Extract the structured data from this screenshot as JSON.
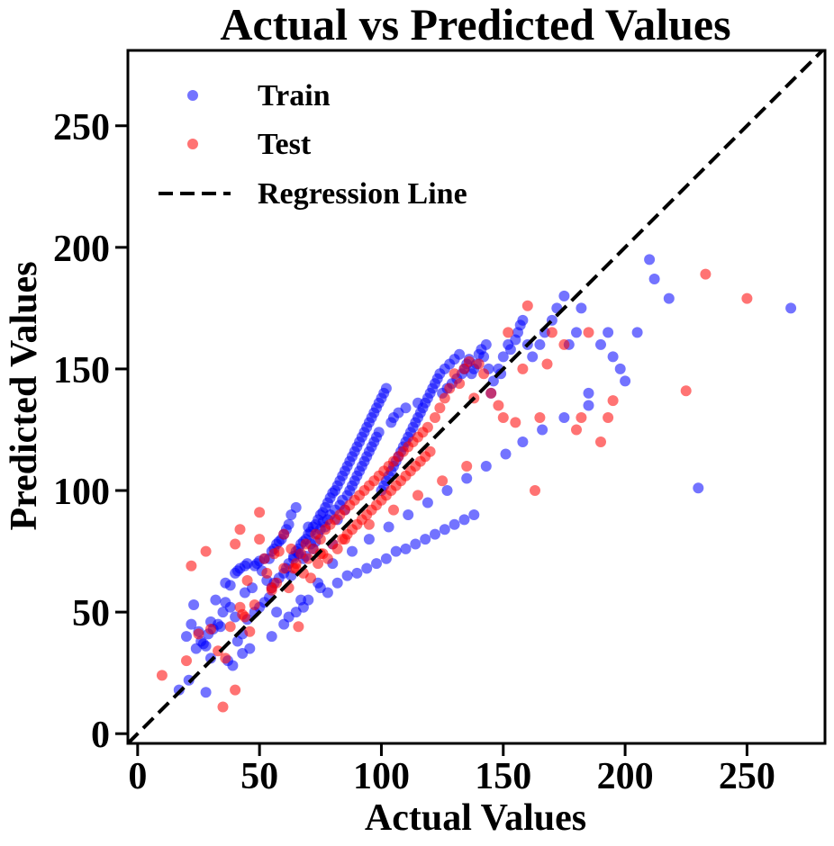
{
  "chart_data": {
    "type": "scatter",
    "title": "Actual vs Predicted Values",
    "xlabel": "Actual Values",
    "ylabel": "Predicted Values",
    "xlim": [
      -4,
      282
    ],
    "ylim": [
      -4,
      281
    ],
    "xticks": [
      0,
      50,
      100,
      150,
      200,
      250
    ],
    "yticks": [
      0,
      50,
      100,
      150,
      200,
      250
    ],
    "grid": false,
    "legend_position": "top-left",
    "regression_line": {
      "label": "Regression Line",
      "x": [
        -4,
        282
      ],
      "y": [
        -4,
        282
      ],
      "color": "#000000",
      "style": "dashed"
    },
    "series": [
      {
        "name": "Train",
        "color": "#0000ff",
        "opacity": 0.55,
        "x": [
          17,
          20,
          21,
          22,
          23,
          24,
          25,
          26,
          27,
          28,
          28,
          29,
          30,
          30,
          31,
          32,
          33,
          34,
          35,
          36,
          36,
          37,
          38,
          38,
          39,
          40,
          40,
          41,
          41,
          42,
          43,
          43,
          44,
          44,
          45,
          45,
          46,
          47,
          48,
          48,
          49,
          50,
          50,
          51,
          52,
          52,
          53,
          54,
          54,
          55,
          55,
          56,
          56,
          57,
          57,
          58,
          58,
          59,
          60,
          60,
          61,
          61,
          62,
          62,
          63,
          63,
          64,
          64,
          65,
          65,
          66,
          66,
          67,
          67,
          68,
          68,
          69,
          69,
          70,
          70,
          71,
          71,
          72,
          72,
          73,
          73,
          74,
          74,
          75,
          75,
          76,
          76,
          77,
          77,
          78,
          78,
          79,
          79,
          80,
          80,
          81,
          81,
          82,
          82,
          83,
          83,
          84,
          84,
          85,
          85,
          86,
          86,
          87,
          87,
          88,
          88,
          89,
          89,
          90,
          90,
          91,
          91,
          92,
          92,
          93,
          93,
          94,
          94,
          95,
          95,
          96,
          96,
          97,
          97,
          98,
          98,
          99,
          99,
          100,
          100,
          101,
          101,
          102,
          102,
          103,
          104,
          104,
          105,
          105,
          106,
          107,
          107,
          108,
          109,
          110,
          110,
          111,
          112,
          113,
          114,
          115,
          115,
          116,
          117,
          118,
          119,
          120,
          121,
          122,
          123,
          124,
          125,
          126,
          127,
          128,
          129,
          130,
          131,
          132,
          133,
          134,
          135,
          136,
          137,
          138,
          139,
          140,
          141,
          142,
          143,
          144,
          145,
          146,
          148,
          149,
          150,
          152,
          153,
          155,
          156,
          157,
          158,
          160,
          162,
          165,
          167,
          170,
          172,
          175,
          177,
          180,
          182,
          185,
          190,
          193,
          195,
          198,
          200,
          205,
          210,
          212,
          218,
          230,
          268,
          60,
          65,
          70,
          75,
          78,
          82,
          86,
          90,
          94,
          98,
          102,
          106,
          110,
          114,
          118,
          122,
          126,
          130,
          134,
          138,
          55,
          62,
          68,
          74,
          80,
          88,
          95,
          103,
          111,
          119,
          127,
          135,
          143,
          151,
          158,
          166,
          175,
          185
        ],
        "y": [
          18,
          40,
          22,
          45,
          53,
          35,
          42,
          38,
          37,
          17,
          36,
          41,
          31,
          46,
          43,
          55,
          45,
          44,
          50,
          62,
          54,
          30,
          61,
          52,
          28,
          66,
          48,
          67,
          38,
          68,
          33,
          41,
          58,
          69,
          47,
          70,
          35,
          60,
          69,
          50,
          70,
          71,
          52,
          67,
          72,
          54,
          63,
          72,
          56,
          75,
          60,
          76,
          62,
          78,
          50,
          79,
          64,
          80,
          82,
          66,
          84,
          68,
          86,
          70,
          65,
          90,
          72,
          73,
          93,
          75,
          76,
          74,
          55,
          78,
          79,
          72,
          80,
          73,
          82,
          85,
          83,
          78,
          85,
          76,
          86,
          79,
          88,
          82,
          90,
          84,
          91,
          87,
          93,
          85,
          95,
          88,
          97,
          90,
          99,
          78,
          100,
          92,
          102,
          88,
          104,
          94,
          106,
          96,
          108,
          92,
          110,
          98,
          112,
          100,
          114,
          102,
          116,
          104,
          118,
          106,
          120,
          108,
          122,
          110,
          124,
          112,
          126,
          114,
          128,
          116,
          130,
          118,
          132,
          120,
          134,
          122,
          136,
          124,
          100,
          138,
          102,
          140,
          104,
          142,
          106,
          108,
          128,
          110,
          130,
          112,
          114,
          132,
          116,
          118,
          120,
          134,
          122,
          124,
          126,
          128,
          130,
          136,
          132,
          134,
          136,
          138,
          140,
          142,
          144,
          146,
          148,
          140,
          150,
          142,
          152,
          144,
          154,
          146,
          156,
          148,
          150,
          152,
          154,
          148,
          150,
          152,
          156,
          158,
          155,
          160,
          150,
          140,
          145,
          150,
          148,
          155,
          160,
          158,
          162,
          165,
          168,
          170,
          160,
          155,
          160,
          165,
          170,
          175,
          180,
          160,
          165,
          175,
          140,
          160,
          165,
          155,
          150,
          145,
          165,
          195,
          187,
          179,
          101,
          175,
          45,
          50,
          55,
          60,
          58,
          62,
          65,
          66,
          68,
          70,
          72,
          75,
          76,
          78,
          80,
          82,
          84,
          86,
          88,
          90,
          40,
          48,
          52,
          62,
          70,
          75,
          80,
          85,
          90,
          95,
          100,
          105,
          110,
          115,
          120,
          125,
          130,
          135
        ]
      },
      {
        "name": "Test",
        "color": "#ff0000",
        "opacity": 0.55,
        "x": [
          10,
          20,
          22,
          25,
          28,
          30,
          33,
          35,
          36,
          38,
          40,
          40,
          42,
          43,
          44,
          45,
          46,
          48,
          50,
          50,
          52,
          53,
          55,
          56,
          57,
          58,
          60,
          60,
          62,
          63,
          64,
          65,
          66,
          67,
          68,
          69,
          70,
          71,
          72,
          73,
          74,
          75,
          76,
          77,
          78,
          79,
          80,
          81,
          82,
          83,
          84,
          85,
          86,
          87,
          88,
          89,
          90,
          91,
          92,
          93,
          94,
          95,
          96,
          97,
          98,
          99,
          100,
          101,
          102,
          103,
          104,
          105,
          106,
          107,
          108,
          109,
          110,
          111,
          112,
          113,
          114,
          115,
          116,
          117,
          118,
          119,
          120,
          122,
          124,
          126,
          128,
          130,
          132,
          134,
          136,
          138,
          140,
          142,
          145,
          148,
          150,
          152,
          155,
          158,
          160,
          163,
          165,
          168,
          170,
          175,
          180,
          182,
          185,
          190,
          193,
          195,
          225,
          233,
          250,
          42,
          55,
          65,
          75,
          85,
          95,
          105,
          115,
          125,
          135
        ],
        "y": [
          24,
          30,
          69,
          41,
          75,
          43,
          34,
          11,
          31,
          44,
          78,
          18,
          84,
          49,
          48,
          63,
          42,
          53,
          80,
          91,
          72,
          66,
          59,
          74,
          62,
          75,
          68,
          82,
          60,
          76,
          68,
          70,
          44,
          74,
          66,
          78,
          72,
          64,
          76,
          82,
          70,
          80,
          74,
          84,
          72,
          86,
          78,
          88,
          76,
          90,
          80,
          92,
          82,
          94,
          84,
          96,
          86,
          98,
          88,
          100,
          90,
          102,
          92,
          104,
          94,
          106,
          96,
          108,
          98,
          110,
          100,
          112,
          102,
          114,
          104,
          116,
          106,
          118,
          108,
          120,
          110,
          122,
          112,
          124,
          114,
          126,
          116,
          130,
          134,
          138,
          142,
          148,
          144,
          150,
          153,
          138,
          152,
          148,
          140,
          135,
          130,
          165,
          128,
          150,
          176,
          100,
          130,
          152,
          165,
          160,
          125,
          130,
          165,
          120,
          130,
          137,
          141,
          189,
          179,
          52,
          60,
          68,
          74,
          80,
          86,
          92,
          98,
          104,
          110
        ]
      }
    ]
  }
}
